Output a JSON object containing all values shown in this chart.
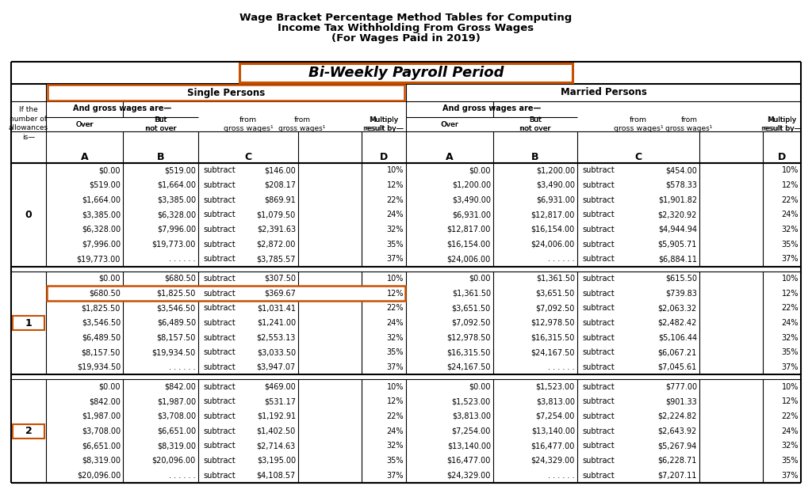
{
  "title_line1": "Wage Bracket Percentage Method Tables for Computing",
  "title_line2": "Income Tax Withholding From Gross Wages",
  "title_line3": "(For Wages Paid in 2019)",
  "subtitle": "Bi-Weekly Payroll Period",
  "col_header_single": "Single Persons",
  "col_header_married": "Married Persons",
  "header_row1_left": "If the\nnumber of\nallowances\nis—",
  "header_gross_wages": "And gross wages are—",
  "allowances": [
    "0",
    "1",
    "2"
  ],
  "single_data": [
    [
      [
        "$0.00",
        "$519.00",
        "subtract",
        "$146.00",
        "10%"
      ],
      [
        "$519.00",
        "$1,664.00",
        "subtract",
        "$208.17",
        "12%"
      ],
      [
        "$1,664.00",
        "$3,385.00",
        "subtract",
        "$869.91",
        "22%"
      ],
      [
        "$3,385.00",
        "$6,328.00",
        "subtract",
        "$1,079.50",
        "24%"
      ],
      [
        "$6,328.00",
        "$7,996.00",
        "subtract",
        "$2,391.63",
        "32%"
      ],
      [
        "$7,996.00",
        "$19,773.00",
        "subtract",
        "$2,872.00",
        "35%"
      ],
      [
        "$19,773.00",
        ". . . . . .",
        "subtract",
        "$3,785.57",
        "37%"
      ]
    ],
    [
      [
        "$0.00",
        "$680.50",
        "subtract",
        "$307.50",
        "10%"
      ],
      [
        "$680.50",
        "$1,825.50",
        "subtract",
        "$369.67",
        "12%"
      ],
      [
        "$1,825.50",
        "$3,546.50",
        "subtract",
        "$1,031.41",
        "22%"
      ],
      [
        "$3,546.50",
        "$6,489.50",
        "subtract",
        "$1,241.00",
        "24%"
      ],
      [
        "$6,489.50",
        "$8,157.50",
        "subtract",
        "$2,553.13",
        "32%"
      ],
      [
        "$8,157.50",
        "$19,934.50",
        "subtract",
        "$3,033.50",
        "35%"
      ],
      [
        "$19,934.50",
        ". . . . . .",
        "subtract",
        "$3,947.07",
        "37%"
      ]
    ],
    [
      [
        "$0.00",
        "$842.00",
        "subtract",
        "$469.00",
        "10%"
      ],
      [
        "$842.00",
        "$1,987.00",
        "subtract",
        "$531.17",
        "12%"
      ],
      [
        "$1,987.00",
        "$3,708.00",
        "subtract",
        "$1,192.91",
        "22%"
      ],
      [
        "$3,708.00",
        "$6,651.00",
        "subtract",
        "$1,402.50",
        "24%"
      ],
      [
        "$6,651.00",
        "$8,319.00",
        "subtract",
        "$2,714.63",
        "32%"
      ],
      [
        "$8,319.00",
        "$20,096.00",
        "subtract",
        "$3,195.00",
        "35%"
      ],
      [
        "$20,096.00",
        ". . . . . .",
        "subtract",
        "$4,108.57",
        "37%"
      ]
    ]
  ],
  "married_data": [
    [
      [
        "$0.00",
        "$1,200.00",
        "subtract",
        "$454.00",
        "10%"
      ],
      [
        "$1,200.00",
        "$3,490.00",
        "subtract",
        "$578.33",
        "12%"
      ],
      [
        "$3,490.00",
        "$6,931.00",
        "subtract",
        "$1,901.82",
        "22%"
      ],
      [
        "$6,931.00",
        "$12,817.00",
        "subtract",
        "$2,320.92",
        "24%"
      ],
      [
        "$12,817.00",
        "$16,154.00",
        "subtract",
        "$4,944.94",
        "32%"
      ],
      [
        "$16,154.00",
        "$24,006.00",
        "subtract",
        "$5,905.71",
        "35%"
      ],
      [
        "$24,006.00",
        ". . . . . .",
        "subtract",
        "$6,884.11",
        "37%"
      ]
    ],
    [
      [
        "$0.00",
        "$1,361.50",
        "subtract",
        "$615.50",
        "10%"
      ],
      [
        "$1,361.50",
        "$3,651.50",
        "subtract",
        "$739.83",
        "12%"
      ],
      [
        "$3,651.50",
        "$7,092.50",
        "subtract",
        "$2,063.32",
        "22%"
      ],
      [
        "$7,092.50",
        "$12,978.50",
        "subtract",
        "$2,482.42",
        "24%"
      ],
      [
        "$12,978.50",
        "$16,315.50",
        "subtract",
        "$5,106.44",
        "32%"
      ],
      [
        "$16,315.50",
        "$24,167.50",
        "subtract",
        "$6,067.21",
        "35%"
      ],
      [
        "$24,167.50",
        ". . . . . .",
        "subtract",
        "$7,045.61",
        "37%"
      ]
    ],
    [
      [
        "$0.00",
        "$1,523.00",
        "subtract",
        "$777.00",
        "10%"
      ],
      [
        "$1,523.00",
        "$3,813.00",
        "subtract",
        "$901.33",
        "12%"
      ],
      [
        "$3,813.00",
        "$7,254.00",
        "subtract",
        "$2,224.82",
        "22%"
      ],
      [
        "$7,254.00",
        "$13,140.00",
        "subtract",
        "$2,643.92",
        "24%"
      ],
      [
        "$13,140.00",
        "$16,477.00",
        "subtract",
        "$5,267.94",
        "32%"
      ],
      [
        "$16,477.00",
        "$24,329.00",
        "subtract",
        "$6,228.71",
        "35%"
      ],
      [
        "$24,329.00",
        ". . . . . .",
        "subtract",
        "$7,207.11",
        "37%"
      ]
    ]
  ],
  "orange_color": "#C85000",
  "bg_color": "#FFFFFF",
  "line_color": "#000000",
  "text_color": "#000000",
  "title_fontsize": 9.5,
  "subtitle_fontsize": 13,
  "header_fontsize": 7.5,
  "data_fontsize": 7.0,
  "abcd_fontsize": 9.0
}
